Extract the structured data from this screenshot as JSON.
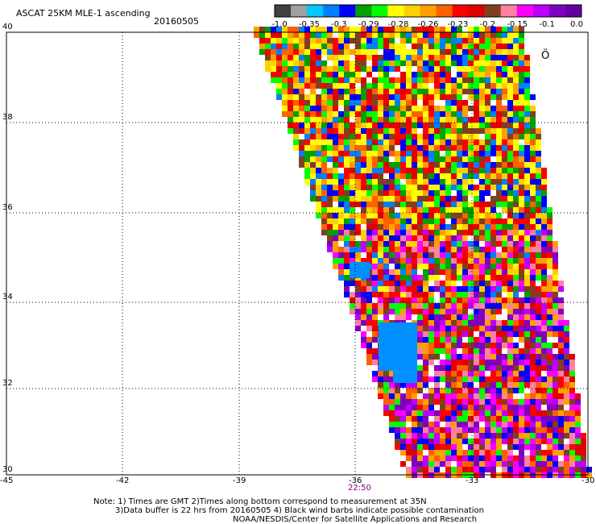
{
  "title": "ASCAT 25KM MLE-1 ascending",
  "date": "20160505",
  "time_label": "22:50",
  "notes": [
    "Note: 1) Times are GMT 2)Times along bottom correspond to measurement at 35N",
    "3)Data buffer is 22 hrs from 20160505 4) Black wind barbs indicate possible contamination",
    "NOAA/NESDIS/Center for Satellite Applications and Research"
  ],
  "colorbar": {
    "colors": [
      "#404040",
      "#a0a0a0",
      "#00c8ff",
      "#0080ff",
      "#0000ff",
      "#00a000",
      "#00ff00",
      "#ffff00",
      "#ffd000",
      "#ffa000",
      "#ff6000",
      "#ff0000",
      "#e00000",
      "#804020",
      "#ff80a0",
      "#ff00ff",
      "#c000ff",
      "#8000c0",
      "#6000a0"
    ],
    "labels": [
      "-1.0",
      "-0.35",
      "-0.3",
      "-0.29",
      "-0.28",
      "-0.26",
      "-0.23",
      "-0.2",
      "-0.15",
      "-0.1",
      "0.0"
    ]
  },
  "axes": {
    "lon_ticks": [
      "-45",
      "-42",
      "-39",
      "-36",
      "-33",
      "-30"
    ],
    "lat_ticks": [
      "40",
      "38",
      "36",
      "34",
      "32",
      "30"
    ]
  },
  "annotation_symbol": "°0"
}
